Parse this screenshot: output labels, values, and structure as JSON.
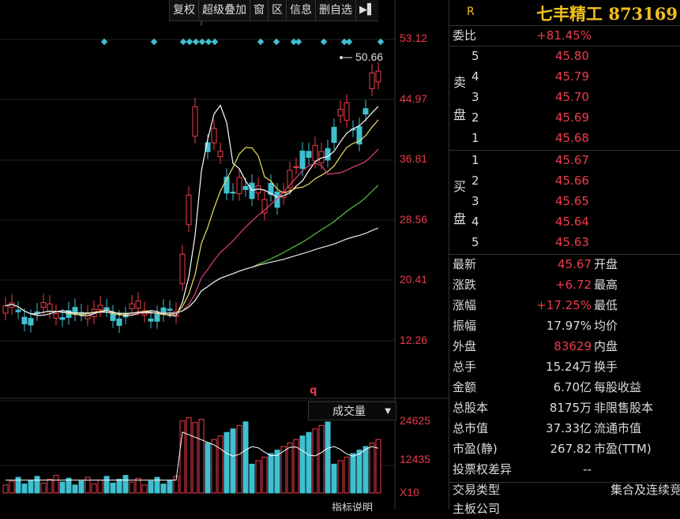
{
  "toolbar": {
    "buttons": [
      "复权",
      "超级叠加",
      "窗",
      "区",
      "信息",
      "删自选"
    ],
    "nav_icon": "collapse-right-icon"
  },
  "price_axis": [
    "53.12",
    "44.97",
    "36.81",
    "28.56",
    "20.41",
    "12.26"
  ],
  "high_marker": "50.66",
  "volume_axis": [
    "24625",
    "12435",
    "X10"
  ],
  "volume_selector": "成交量",
  "indicator_tab": "指标说明",
  "q_marker": "q",
  "stock": {
    "flag": "R",
    "name": "七丰精工",
    "code": "873169"
  },
  "weibi": {
    "label": "委比",
    "value": "+81.45%"
  },
  "sell": {
    "label_top": "卖",
    "label_bottom": "盘",
    "levels": [
      {
        "n": "5",
        "price": "45.80"
      },
      {
        "n": "4",
        "price": "45.79"
      },
      {
        "n": "3",
        "price": "45.70"
      },
      {
        "n": "2",
        "price": "45.69"
      },
      {
        "n": "1",
        "price": "45.68"
      }
    ]
  },
  "buy": {
    "label_top": "买",
    "label_bottom": "盘",
    "levels": [
      {
        "n": "1",
        "price": "45.67"
      },
      {
        "n": "2",
        "price": "45.66"
      },
      {
        "n": "3",
        "price": "45.65"
      },
      {
        "n": "4",
        "price": "45.64"
      },
      {
        "n": "5",
        "price": "45.63"
      }
    ]
  },
  "quote_rows": [
    {
      "label": "最新",
      "value": "45.67",
      "color": "red",
      "label2": "开盘"
    },
    {
      "label": "涨跌",
      "value": "+6.72",
      "color": "red",
      "label2": "最高"
    },
    {
      "label": "涨幅",
      "value": "+17.25%",
      "color": "red",
      "label2": "最低"
    },
    {
      "label": "振幅",
      "value": "17.97%",
      "color": "white",
      "label2": "均价"
    },
    {
      "label": "外盘",
      "value": "83629",
      "color": "red",
      "label2": "内盘"
    },
    {
      "label": "总手",
      "value": "15.24万",
      "color": "white",
      "label2": "换手"
    },
    {
      "label": "金额",
      "value": "6.70亿",
      "color": "white",
      "label2": "每股收益"
    },
    {
      "label": "总股本",
      "value": "8175万",
      "color": "white",
      "label2": "非限售股本"
    },
    {
      "label": "总市值",
      "value": "37.33亿",
      "color": "white",
      "label2": "流通市值"
    },
    {
      "label": "市盈(静)",
      "value": "267.82",
      "color": "white",
      "label2": "市盈(TTM)"
    },
    {
      "label": "投票权差异",
      "value": "--",
      "color": "white",
      "label2": ""
    },
    {
      "label": "交易类型",
      "value": "",
      "color": "white",
      "label2": "集合及连续竞"
    }
  ],
  "last_row_partial": "主板公司",
  "colors": {
    "up": "#f03c4c",
    "down": "#3fc0d0",
    "accent": "#f0c020"
  }
}
